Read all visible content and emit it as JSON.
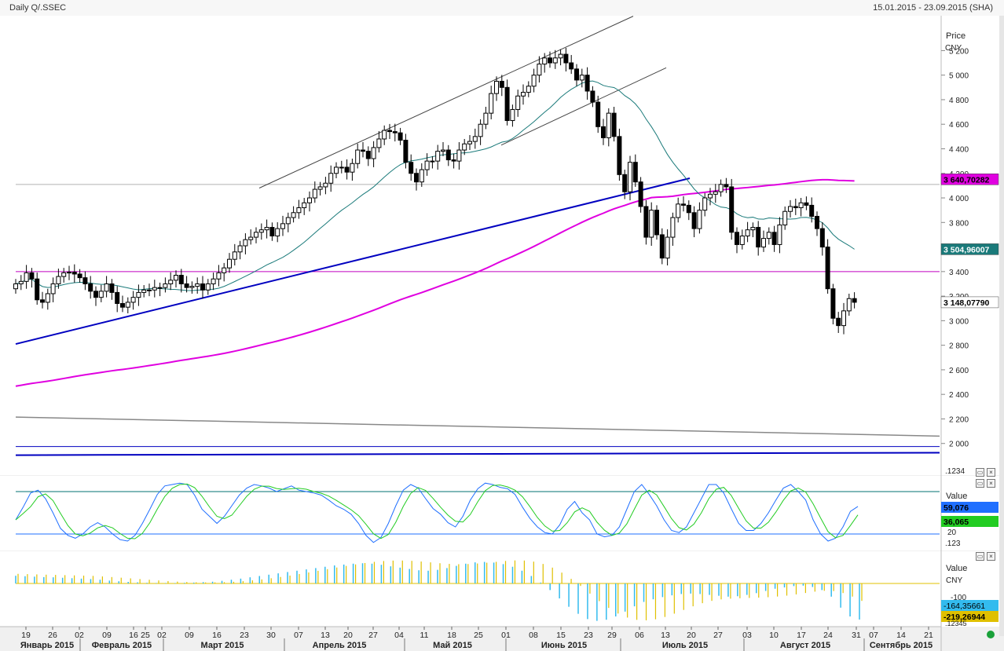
{
  "header": {
    "title": "Daily Q/.SSEC",
    "range": "15.01.2015 - 23.09.2015 (SHA)"
  },
  "colors": {
    "background": "#ffffff",
    "up_candle": "#ffffff",
    "down_candle": "#000000",
    "ma_short": "#1a7a7a",
    "ma_long": "#e000e0",
    "trend_blue": "#0000c0",
    "stoch_k": "#1f6fff",
    "stoch_d": "#22cc22",
    "macd_blue": "#33bbee",
    "macd_yellow": "#e0c000",
    "ref_line_teal": "#007070"
  },
  "chart_data": [
    {
      "type": "candlestick",
      "title": "Daily Q/.SSEC",
      "ylabel": "Price CNY",
      "ylim": [
        1800,
        5420
      ],
      "y_ticks": [
        "5 200",
        "5 000",
        "4 800",
        "4 600",
        "4 400",
        "4 200",
        "4 000",
        "3 800",
        "3 400",
        "3 200",
        "3 000",
        "2 800",
        "2 600",
        "2 400",
        "2 200",
        "2 000"
      ],
      "x_day_labels": [
        "19",
        "26",
        "02",
        "09",
        "16",
        "25",
        "02",
        "09",
        "16",
        "23",
        "30",
        "07",
        "13",
        "20",
        "27",
        "04",
        "11",
        "18",
        "25",
        "01",
        "08",
        "15",
        "23",
        "29",
        "06",
        "13",
        "20",
        "27",
        "03",
        "10",
        "17",
        "24",
        "31",
        "07",
        "14",
        "21"
      ],
      "x_month_labels": [
        "Январь 2015",
        "Февраль 2015",
        "Март 2015",
        "Апрель 2015",
        "Май 2015",
        "Июнь 2015",
        "Июль 2015",
        "Август 2015",
        "Сентябрь 2015"
      ],
      "close_series": [
        3300,
        3320,
        3390,
        3340,
        3170,
        3150,
        3220,
        3300,
        3360,
        3390,
        3395,
        3380,
        3350,
        3300,
        3240,
        3190,
        3240,
        3300,
        3230,
        3140,
        3110,
        3150,
        3190,
        3230,
        3250,
        3250,
        3270,
        3270,
        3300,
        3330,
        3370,
        3300,
        3270,
        3280,
        3300,
        3250,
        3300,
        3340,
        3390,
        3430,
        3500,
        3560,
        3610,
        3660,
        3680,
        3720,
        3740,
        3760,
        3690,
        3750,
        3790,
        3840,
        3880,
        3920,
        3960,
        4000,
        4070,
        4090,
        4120,
        4200,
        4250,
        4250,
        4210,
        4280,
        4390,
        4380,
        4320,
        4410,
        4480,
        4550,
        4540,
        4530,
        4470,
        4290,
        4200,
        4130,
        4230,
        4300,
        4300,
        4380,
        4390,
        4310,
        4300,
        4390,
        4440,
        4460,
        4500,
        4600,
        4690,
        4850,
        4950,
        4900,
        4630,
        4720,
        4830,
        4860,
        4910,
        5000,
        5090,
        5140,
        5100,
        5140,
        5170,
        5100,
        5050,
        4960,
        5000,
        4870,
        4780,
        4580,
        4490,
        4690,
        4500,
        4190,
        4050,
        4290,
        4130,
        3930,
        3680,
        3900,
        3700,
        3510,
        3680,
        3840,
        3950,
        3940,
        3880,
        3750,
        3900,
        4000,
        4030,
        4050,
        4110,
        4090,
        3720,
        3620,
        3690,
        3740,
        3760,
        3600,
        3670,
        3720,
        3620,
        3780,
        3890,
        3930,
        3920,
        3960,
        3940,
        3850,
        3750,
        3600,
        3260,
        3020,
        2960,
        3080,
        3180,
        3150
      ],
      "series": [
        {
          "name": "",
          "role": "moving average 20",
          "last_value": "3 504,96007"
        },
        {
          "name": "",
          "role": "moving average 120",
          "last_value": "3 640,70282"
        }
      ],
      "price_marker": "3 148,07790",
      "horizontal_levels": [
        4110,
        3400
      ]
    },
    {
      "type": "line",
      "title": "Value",
      "ylim": [
        0,
        100
      ],
      "levels": [
        80,
        20
      ],
      "level_label": "20",
      "k_value": "59,076",
      "d_value": "36,065",
      "series": [
        {
          "name": "",
          "values": [
            40,
            58,
            78,
            82,
            70,
            50,
            28,
            18,
            14,
            20,
            30,
            36,
            30,
            20,
            12,
            10,
            18,
            35,
            55,
            76,
            88,
            90,
            92,
            90,
            75,
            55,
            45,
            35,
            45,
            60,
            75,
            85,
            90,
            88,
            85,
            80,
            84,
            88,
            82,
            80,
            78,
            75,
            68,
            60,
            55,
            48,
            35,
            18,
            8,
            15,
            35,
            60,
            82,
            90,
            85,
            70,
            56,
            48,
            36,
            30,
            45,
            68,
            84,
            92,
            90,
            86,
            84,
            76,
            58,
            42,
            30,
            22,
            20,
            33,
            55,
            66,
            50,
            40,
            20,
            16,
            18,
            30,
            55,
            80,
            90,
            76,
            60,
            40,
            25,
            22,
            30,
            50,
            70,
            90,
            90,
            78,
            56,
            35,
            25,
            25,
            35,
            50,
            68,
            85,
            90,
            80,
            68,
            40,
            20,
            10,
            14,
            30,
            52,
            59
          ]
        }
      ]
    },
    {
      "type": "bar",
      "title": "Value CNY",
      "tick_label": "-100",
      "macd_value": "-164,35661",
      "signal_value": "-219,26944",
      "values": [
        35,
        33,
        31,
        29,
        28,
        26,
        24,
        22,
        20,
        17,
        13,
        10,
        7,
        5,
        3,
        2,
        2,
        2,
        3,
        4,
        6,
        8,
        12,
        17,
        22,
        28,
        34,
        40,
        46,
        52,
        58,
        64,
        70,
        76,
        82,
        86,
        90,
        92,
        90,
        85,
        78,
        72,
        66,
        60,
        58,
        62,
        70,
        80,
        90,
        96,
        98,
        95,
        88,
        76,
        58,
        34,
        4,
        -30,
        -68,
        -106,
        -138,
        -162,
        -170,
        -165,
        -150,
        -128,
        -104,
        -84,
        -72,
        -62,
        -54,
        -48,
        -46,
        -48,
        -52,
        -56,
        -60,
        -58,
        -52,
        -44,
        -34,
        -24,
        -18,
        -12,
        -10,
        -16,
        -30,
        -60,
        -110,
        -150,
        -164
      ]
    }
  ],
  "pane_labels": {
    "price_unit_1": "Price",
    "price_unit_2": "CNY",
    "stoch_title": "Value",
    "macd_title_1": "Value",
    "macd_title_2": "CNY",
    "scale_box": ".123",
    "scale_box_2": ".1234",
    "scale_box_3": ".12345"
  }
}
